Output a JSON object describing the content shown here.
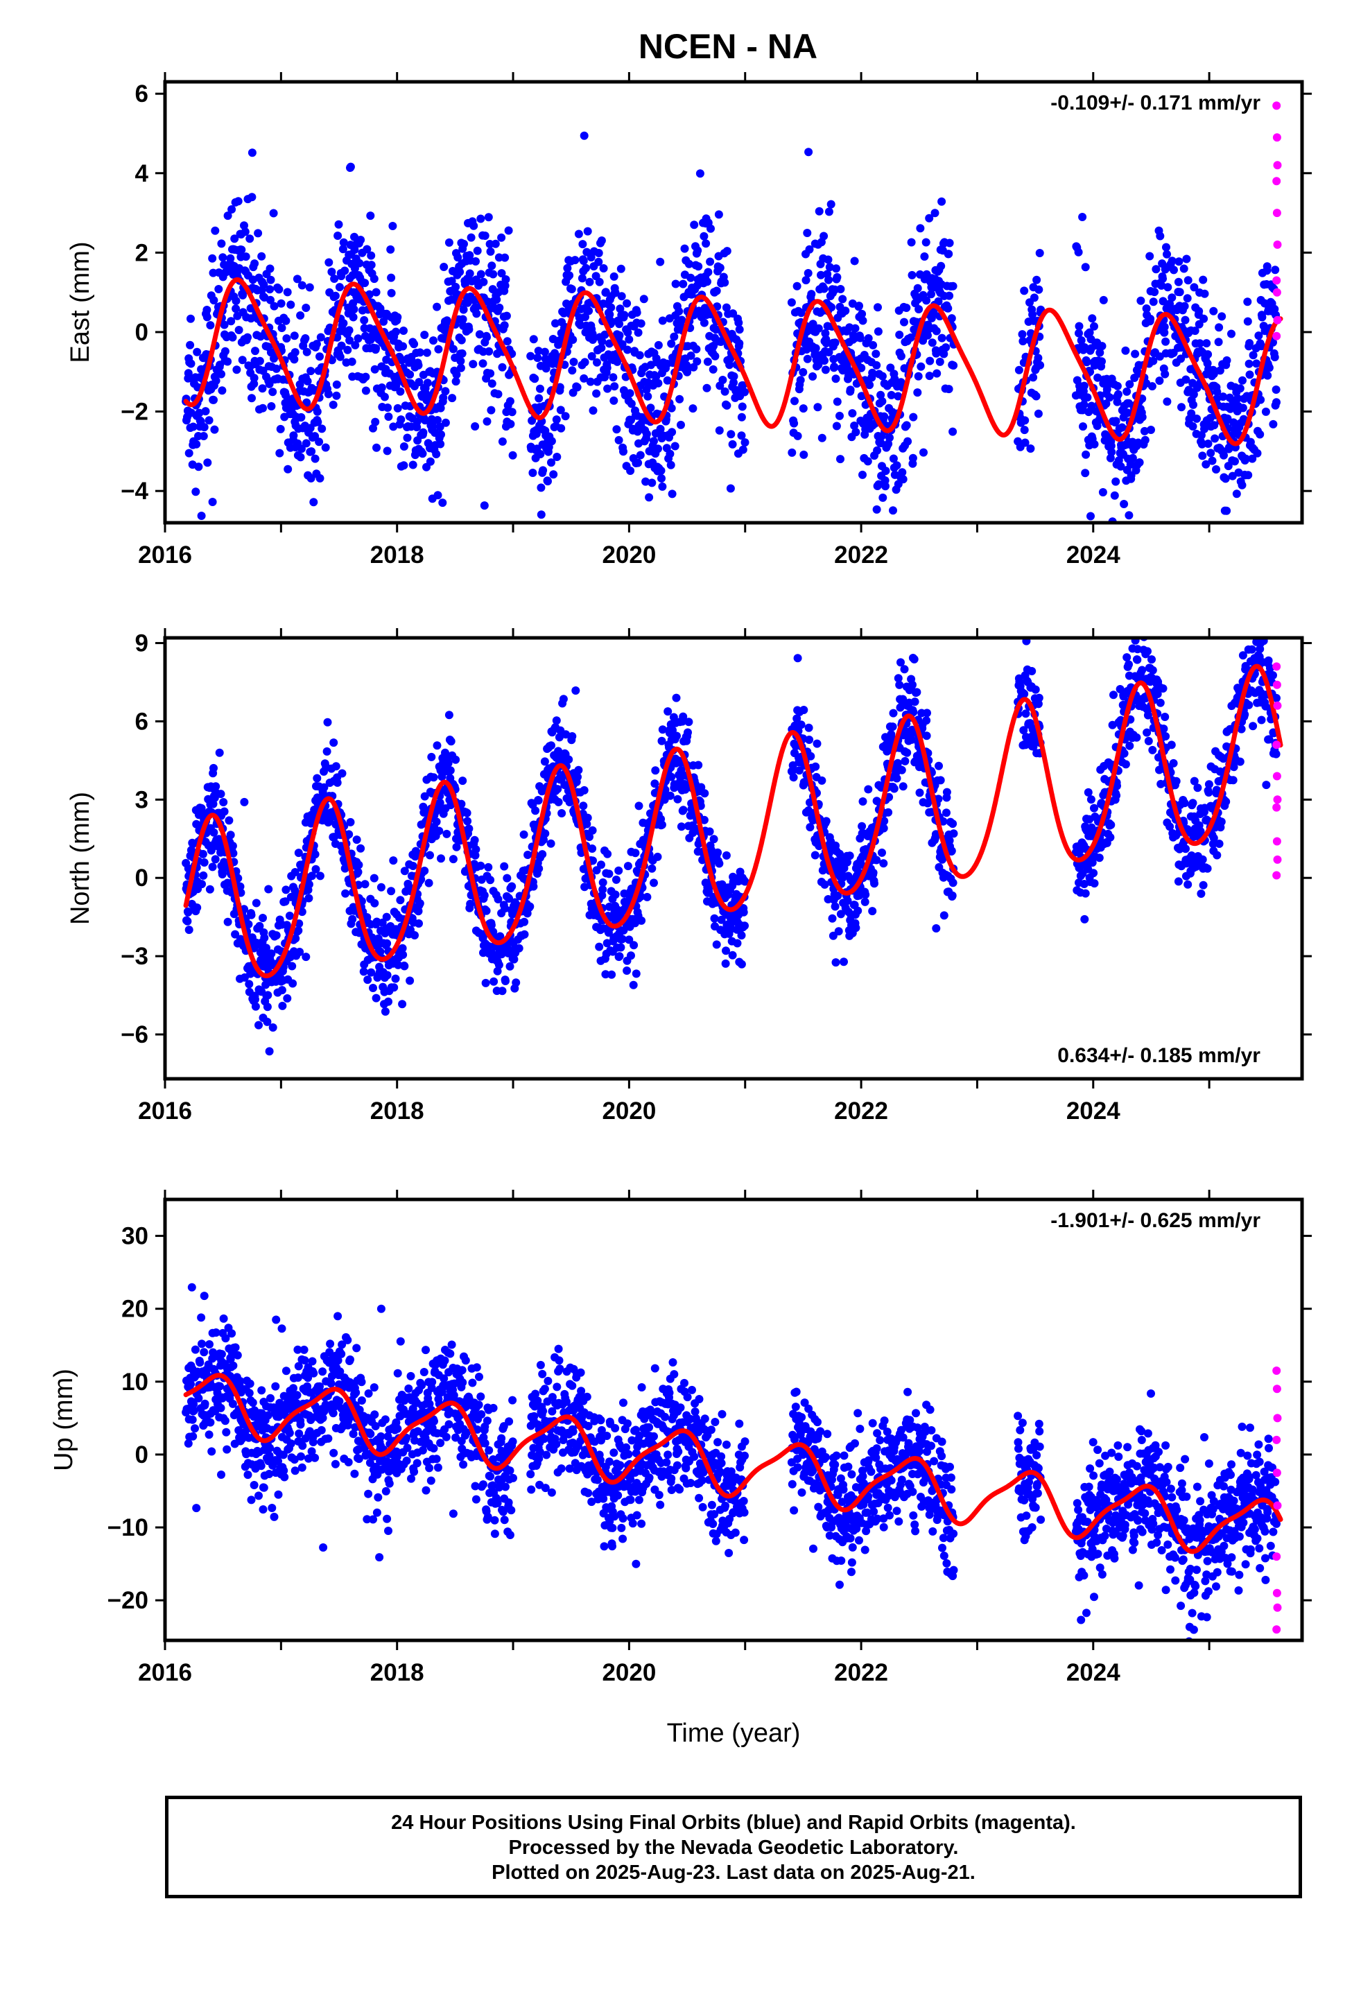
{
  "title": "NCEN - NA",
  "xlabel": "Time (year)",
  "footer": {
    "line1": "24 Hour Positions Using Final Orbits (blue) and Rapid Orbits (magenta).",
    "line2": "Processed by the Nevada Geodetic Laboratory.",
    "line3": "Plotted on 2025-Aug-23. Last data on 2025-Aug-21."
  },
  "colors": {
    "final_orbits": "#0000ff",
    "rapid_orbits": "#ff00ff",
    "fit": "#ff0000"
  },
  "chart_data": [
    {
      "type": "scatter",
      "ylabel": "East (mm)",
      "rate": "-0.109+/- 0.171 mm/yr",
      "xlim": [
        2016.0,
        2025.8
      ],
      "ylim": [
        -4.8,
        6.3
      ],
      "xticks": [
        2016,
        2018,
        2020,
        2022,
        2024
      ],
      "yticks": [
        -4,
        -2,
        0,
        2,
        4,
        6
      ],
      "fit": {
        "offset": -0.2,
        "rate": -0.109,
        "ref_year": 2016.2,
        "annual_cos": -0.65,
        "annual_sin": -1.35,
        "semiannual_cos": 0.25,
        "semiannual_sin": 0.15
      },
      "scatter_sigma": 1.1,
      "gaps": [
        [
          2019.0,
          2019.15
        ],
        [
          2021.0,
          2021.4
        ],
        [
          2022.8,
          2023.35
        ],
        [
          2023.55,
          2023.85
        ]
      ],
      "rapid": [
        5.7,
        4.9,
        4.2,
        3.8,
        3.0,
        2.2,
        1.3,
        1.0,
        0.3,
        -0.1
      ]
    },
    {
      "type": "scatter",
      "ylabel": "North (mm)",
      "rate": "0.634+/- 0.185 mm/yr",
      "xlim": [
        2016.0,
        2025.8
      ],
      "ylim": [
        -7.7,
        9.2
      ],
      "xticks": [
        2016,
        2018,
        2020,
        2022,
        2024
      ],
      "yticks": [
        -6,
        -3,
        0,
        3,
        6,
        9
      ],
      "fit": {
        "offset": -1.3,
        "rate": 0.634,
        "ref_year": 2016.2,
        "annual_cos": -2.6,
        "annual_sin": 1.9,
        "semiannual_cos": 0.2,
        "semiannual_sin": -0.3
      },
      "scatter_sigma": 1.0,
      "gaps": [
        [
          2021.0,
          2021.4
        ],
        [
          2022.8,
          2023.35
        ],
        [
          2023.55,
          2023.85
        ]
      ],
      "rapid": [
        8.1,
        7.4,
        6.6,
        5.1,
        3.9,
        3.0,
        2.7,
        1.4,
        0.7,
        0.1
      ]
    },
    {
      "type": "scatter",
      "ylabel": "Up (mm)",
      "rate": "-1.901+/- 0.625 mm/yr",
      "xlim": [
        2016.0,
        2025.8
      ],
      "ylim": [
        -25.5,
        35.0
      ],
      "xticks": [
        2016,
        2018,
        2020,
        2022,
        2024
      ],
      "yticks": [
        -20,
        -10,
        0,
        10,
        20,
        30
      ],
      "fit": {
        "offset": 7.5,
        "rate": -1.901,
        "ref_year": 2016.2,
        "annual_cos": -3.0,
        "annual_sin": 2.2,
        "semiannual_cos": 0.8,
        "semiannual_sin": 0.6
      },
      "scatter_sigma": 4.2,
      "gaps": [
        [
          2019.0,
          2019.15
        ],
        [
          2021.0,
          2021.4
        ],
        [
          2022.8,
          2023.35
        ],
        [
          2023.55,
          2023.85
        ]
      ],
      "rapid": [
        11.5,
        9.0,
        5.0,
        2.0,
        -2.5,
        -7.0,
        -14.0,
        -19.0,
        -21.0,
        -24.0
      ]
    }
  ]
}
